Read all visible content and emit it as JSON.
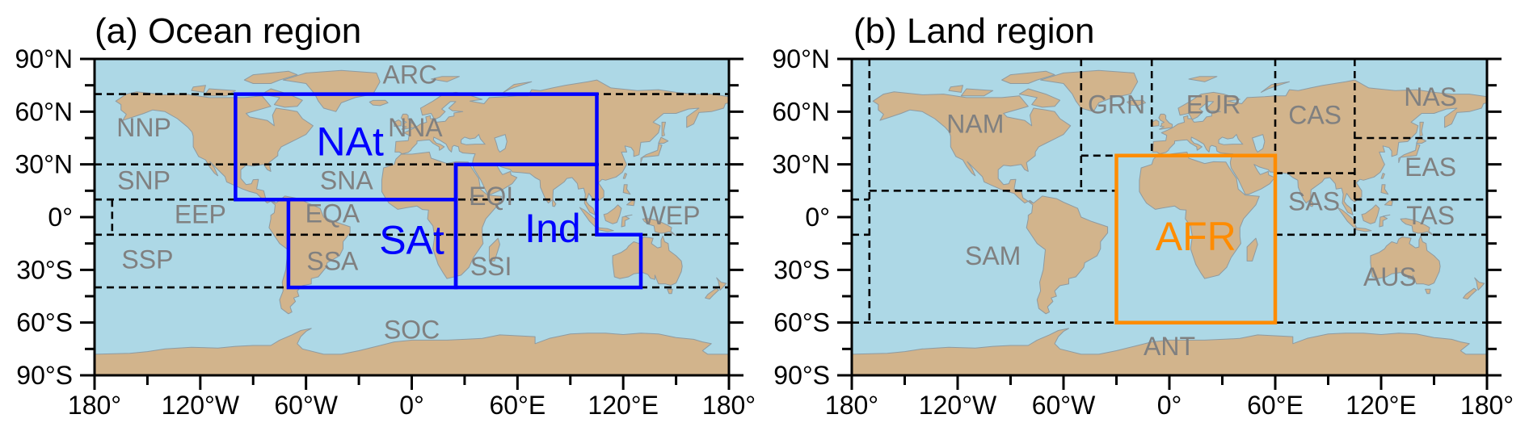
{
  "colors": {
    "ocean": "#ADD8E6",
    "land": "#D2B48C",
    "coastline": "#8E9AA0",
    "region_label": "#808080",
    "boundary": "#000000",
    "ocean_highlight": "#0000FF",
    "land_highlight": "#FF8C00"
  },
  "axes": {
    "lon_ticks": [
      -180,
      -120,
      -60,
      0,
      60,
      120,
      180
    ],
    "lon_tick_labels": [
      "180°",
      "120°W",
      "60°W",
      "0°",
      "60°E",
      "120°E",
      "180°"
    ],
    "lat_ticks": [
      90,
      60,
      30,
      0,
      -30,
      -60,
      -90
    ],
    "lat_tick_labels": [
      "90°N",
      "60°N",
      "30°N",
      "0°",
      "30°S",
      "60°S",
      "90°S"
    ],
    "lon_range": [
      -180,
      180
    ],
    "lat_range": [
      -90,
      90
    ],
    "projection": "equirectangular"
  },
  "panels": [
    {
      "id": "a",
      "title": "(a) Ocean region",
      "dashed_boundaries": [
        [
          [
            -180,
            70
          ],
          [
            180,
            70
          ]
        ],
        [
          [
            -180,
            30
          ],
          [
            180,
            30
          ]
        ],
        [
          [
            -180,
            10
          ],
          [
            180,
            10
          ]
        ],
        [
          [
            -180,
            -10
          ],
          [
            180,
            -10
          ]
        ],
        [
          [
            -180,
            -40
          ],
          [
            180,
            -40
          ]
        ],
        [
          [
            -170,
            10
          ],
          [
            -170,
            -10
          ]
        ]
      ],
      "highlight_color_key": "ocean_highlight",
      "highlight_regions": [
        {
          "name": "NAt",
          "polygon": [
            [
              -100,
              70
            ],
            [
              105,
              70
            ],
            [
              105,
              30
            ],
            [
              25,
              30
            ],
            [
              25,
              10
            ],
            [
              -100,
              10
            ]
          ]
        },
        {
          "name": "SAt",
          "polygon": [
            [
              -70,
              10
            ],
            [
              25,
              10
            ],
            [
              25,
              -40
            ],
            [
              -70,
              -40
            ]
          ]
        },
        {
          "name": "Ind",
          "polygon": [
            [
              25,
              30
            ],
            [
              105,
              30
            ],
            [
              105,
              -10
            ],
            [
              130,
              -10
            ],
            [
              130,
              -40
            ],
            [
              25,
              -40
            ]
          ]
        }
      ],
      "labels": [
        {
          "text": "ARC"
        },
        {
          "text": "NNP"
        },
        {
          "text": "NNA"
        },
        {
          "text": "SNP"
        },
        {
          "text": "SNA"
        },
        {
          "text": "EEP"
        },
        {
          "text": "EQA"
        },
        {
          "text": "EQI"
        },
        {
          "text": "WEP"
        },
        {
          "text": "SSP"
        },
        {
          "text": "SSA"
        },
        {
          "text": "SSI"
        },
        {
          "text": "SOC"
        },
        {
          "text": "NAt",
          "highlight": true
        },
        {
          "text": "SAt",
          "highlight": true
        },
        {
          "text": "Ind",
          "highlight": true
        }
      ]
    },
    {
      "id": "b",
      "title": "(b) Land region",
      "dashed_boundaries": [
        [
          [
            -170,
            90
          ],
          [
            -170,
            -60
          ]
        ],
        [
          [
            -180,
            10
          ],
          [
            -170,
            10
          ]
        ],
        [
          [
            -180,
            -10
          ],
          [
            -170,
            -10
          ]
        ],
        [
          [
            -170,
            15
          ],
          [
            -30,
            15
          ]
        ],
        [
          [
            -50,
            90
          ],
          [
            -50,
            15
          ]
        ],
        [
          [
            -50,
            35
          ],
          [
            -30,
            35
          ]
        ],
        [
          [
            -10,
            90
          ],
          [
            -10,
            35
          ]
        ],
        [
          [
            60,
            90
          ],
          [
            60,
            35
          ]
        ],
        [
          [
            60,
            25
          ],
          [
            105,
            25
          ]
        ],
        [
          [
            105,
            90
          ],
          [
            105,
            -10
          ]
        ],
        [
          [
            105,
            45
          ],
          [
            180,
            45
          ]
        ],
        [
          [
            105,
            10
          ],
          [
            180,
            10
          ]
        ],
        [
          [
            60,
            -10
          ],
          [
            180,
            -10
          ]
        ],
        [
          [
            -180,
            -60
          ],
          [
            180,
            -60
          ]
        ]
      ],
      "highlight_color_key": "land_highlight",
      "highlight_regions": [
        {
          "name": "AFR",
          "polygon": [
            [
              -30,
              35
            ],
            [
              60,
              35
            ],
            [
              60,
              -60
            ],
            [
              -30,
              -60
            ]
          ]
        }
      ],
      "labels": [
        {
          "text": "NAM"
        },
        {
          "text": "GRN"
        },
        {
          "text": "EUR"
        },
        {
          "text": "CAS"
        },
        {
          "text": "NAS"
        },
        {
          "text": "EAS"
        },
        {
          "text": "SAS"
        },
        {
          "text": "TAS"
        },
        {
          "text": "SAM"
        },
        {
          "text": "AUS"
        },
        {
          "text": "ANT"
        },
        {
          "text": "AFR",
          "highlight": true
        }
      ]
    }
  ]
}
